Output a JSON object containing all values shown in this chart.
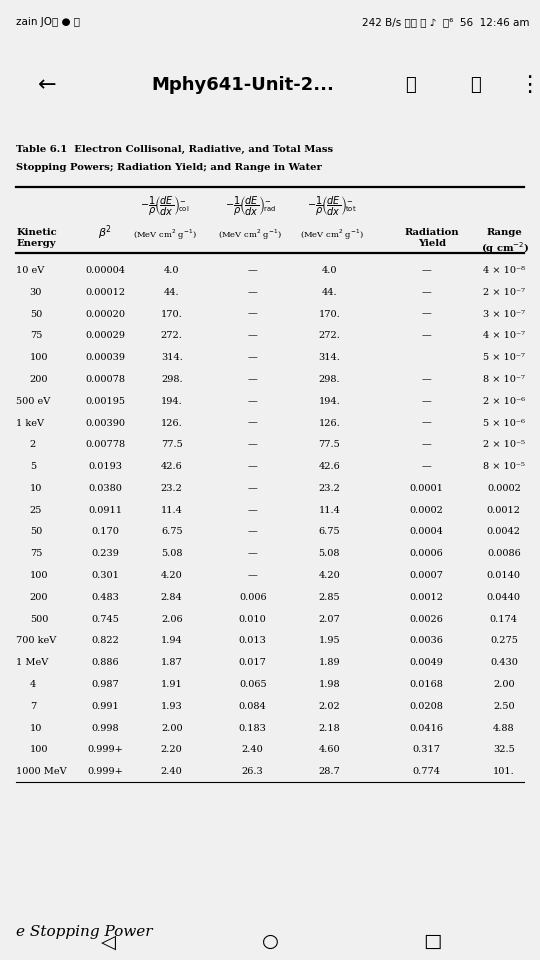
{
  "title_line1": "Table 6.1  Electron Collisonal, Radiative, and Total Mass",
  "title_line2": "Stopping Powers; Radiation Yield; and Range in Water",
  "bg_color": "#f0f0f0",
  "table_bg": "#ffffff",
  "rows": [
    [
      "10 eV",
      "0.00004",
      "4.0",
      "—",
      "4.0",
      "—",
      "4 × 10⁻⁸"
    ],
    [
      "30",
      "0.00012",
      "44.",
      "—",
      "44.",
      "—",
      "2 × 10⁻⁷"
    ],
    [
      "50",
      "0.00020",
      "170.",
      "—",
      "170.",
      "—",
      "3 × 10⁻⁷"
    ],
    [
      "75",
      "0.00029",
      "272.",
      "—",
      "272.",
      "—",
      "4 × 10⁻⁷"
    ],
    [
      "100",
      "0.00039",
      "314.",
      "—",
      "314.",
      "",
      "5 × 10⁻⁷"
    ],
    [
      "200",
      "0.00078",
      "298.",
      "—",
      "298.",
      "—",
      "8 × 10⁻⁷"
    ],
    [
      "500 eV",
      "0.00195",
      "194.",
      "—",
      "194.",
      "—",
      "2 × 10⁻⁶"
    ],
    [
      "1 keV",
      "0.00390",
      "126.",
      "—",
      "126.",
      "—",
      "5 × 10⁻⁶"
    ],
    [
      "2",
      "0.00778",
      "77.5",
      "—",
      "77.5",
      "—",
      "2 × 10⁻⁵"
    ],
    [
      "5",
      "0.0193",
      "42.6",
      "—",
      "42.6",
      "—",
      "8 × 10⁻⁵"
    ],
    [
      "10",
      "0.0380",
      "23.2",
      "—",
      "23.2",
      "0.0001",
      "0.0002"
    ],
    [
      "25",
      "0.0911",
      "11.4",
      "—",
      "11.4",
      "0.0002",
      "0.0012"
    ],
    [
      "50",
      "0.170",
      "6.75",
      "—",
      "6.75",
      "0.0004",
      "0.0042"
    ],
    [
      "75",
      "0.239",
      "5.08",
      "—",
      "5.08",
      "0.0006",
      "0.0086"
    ],
    [
      "100",
      "0.301",
      "4.20",
      "—",
      "4.20",
      "0.0007",
      "0.0140"
    ],
    [
      "200",
      "0.483",
      "2.84",
      "0.006",
      "2.85",
      "0.0012",
      "0.0440"
    ],
    [
      "500",
      "0.745",
      "2.06",
      "0.010",
      "2.07",
      "0.0026",
      "0.174"
    ],
    [
      "700 keV",
      "0.822",
      "1.94",
      "0.013",
      "1.95",
      "0.0036",
      "0.275"
    ],
    [
      "1 MeV",
      "0.886",
      "1.87",
      "0.017",
      "1.89",
      "0.0049",
      "0.430"
    ],
    [
      "4",
      "0.987",
      "1.91",
      "0.065",
      "1.98",
      "0.0168",
      "2.00"
    ],
    [
      "7",
      "0.991",
      "1.93",
      "0.084",
      "2.02",
      "0.0208",
      "2.50"
    ],
    [
      "10",
      "0.998",
      "2.00",
      "0.183",
      "2.18",
      "0.0416",
      "4.88"
    ],
    [
      "100",
      "0.999+",
      "2.20",
      "2.40",
      "4.60",
      "0.317",
      "32.5"
    ],
    [
      "1000 MeV",
      "0.999+",
      "2.40",
      "26.3",
      "28.7",
      "0.774",
      "101."
    ]
  ]
}
